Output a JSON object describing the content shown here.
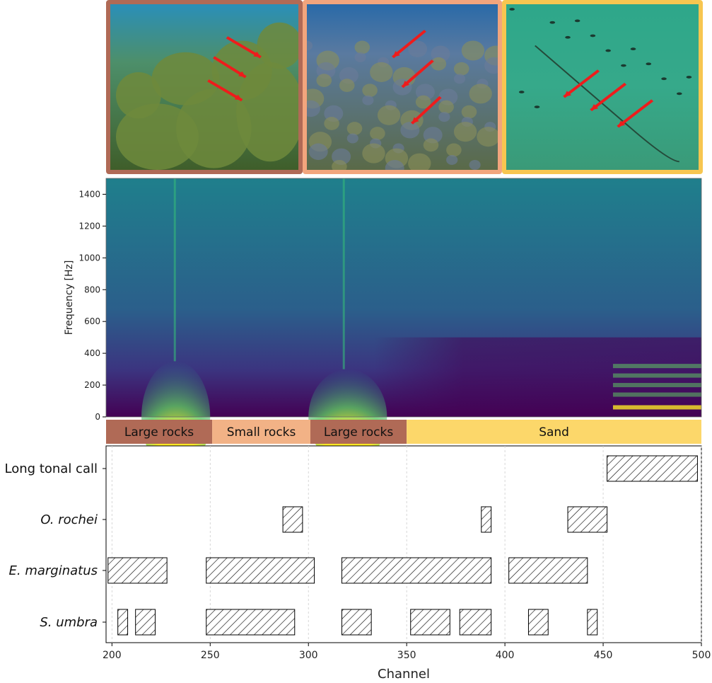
{
  "photos": [
    {
      "key": "large-rocks-photo",
      "border": "#b06a56",
      "scene": "rocks"
    },
    {
      "key": "small-rocks-photo",
      "border": "#f2a57d",
      "scene": "weeds"
    },
    {
      "key": "sand-photo",
      "border": "#f7c650",
      "scene": "sand"
    }
  ],
  "colors": {
    "large_rocks": "#b06a56",
    "small_rocks": "#f2b286",
    "sand": "#fcd76a",
    "hatch_stroke": "#111111",
    "arrow": "#ee1c1c"
  },
  "chart_data": [
    {
      "type": "heatmap",
      "colormap": "viridis",
      "xlabel": "",
      "ylabel": "Frequency [Hz]",
      "yticks": [
        0,
        200,
        400,
        600,
        800,
        1000,
        1200,
        1400
      ],
      "ylim": [
        0,
        1500
      ],
      "xlim": [
        197,
        500
      ],
      "hotspots": [
        {
          "x_center": 232,
          "x_range": [
            215,
            250
          ],
          "freq_range": [
            0,
            350
          ],
          "intensity": "high"
        },
        {
          "x_center": 318,
          "x_range": [
            300,
            340
          ],
          "freq_range": [
            0,
            300
          ],
          "intensity": "high"
        },
        {
          "x_center": 480,
          "x_range": [
            455,
            500
          ],
          "freq_range": [
            50,
            350
          ],
          "intensity": "medium",
          "pattern": "harmonic bands"
        }
      ]
    },
    {
      "type": "bar",
      "orientation": "horizontal",
      "style": "hatched",
      "xlabel": "Channel",
      "xlim": [
        197,
        500
      ],
      "xticks": [
        200,
        250,
        300,
        350,
        400,
        450,
        500
      ],
      "grid": "vertical dashed",
      "segments_bar": [
        {
          "label": "Large rocks",
          "start": 197,
          "end": 251,
          "color": "#b06a56"
        },
        {
          "label": "Small rocks",
          "start": 251,
          "end": 301,
          "color": "#f2b286"
        },
        {
          "label": "Large rocks",
          "start": 301,
          "end": 350,
          "color": "#b06a56"
        },
        {
          "label": "Sand",
          "start": 350,
          "end": 500,
          "color": "#fcd76a"
        }
      ],
      "categories": [
        "Long tonal call",
        "O.  rochei",
        "E.  marginatus",
        "S.  umbra"
      ],
      "series": [
        {
          "category": "Long tonal call",
          "italic": false,
          "intervals": [
            [
              452,
              498
            ]
          ]
        },
        {
          "category": "O.  rochei",
          "italic": true,
          "intervals": [
            [
              287,
              297
            ],
            [
              388,
              393
            ],
            [
              432,
              452
            ]
          ]
        },
        {
          "category": "E.  marginatus",
          "italic": true,
          "intervals": [
            [
              198,
              228
            ],
            [
              248,
              303
            ],
            [
              317,
              393
            ],
            [
              402,
              442
            ]
          ]
        },
        {
          "category": "S.  umbra",
          "italic": true,
          "intervals": [
            [
              203,
              208
            ],
            [
              212,
              222
            ],
            [
              248,
              293
            ],
            [
              317,
              332
            ],
            [
              352,
              372
            ],
            [
              377,
              393
            ],
            [
              412,
              422
            ],
            [
              442,
              447
            ]
          ]
        }
      ]
    }
  ]
}
